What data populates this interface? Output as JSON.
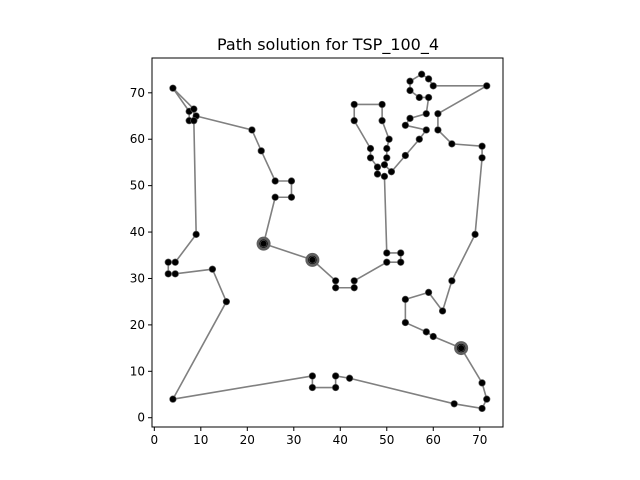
{
  "chart_data": {
    "type": "line",
    "title": "Path solution for TSP_100_4",
    "xlabel": "",
    "ylabel": "",
    "xlim": [
      -0.5,
      75
    ],
    "ylim": [
      -2,
      77.5
    ],
    "xticks": [
      0,
      10,
      20,
      30,
      40,
      50,
      60,
      70
    ],
    "yticks": [
      0,
      10,
      20,
      30,
      40,
      50,
      60,
      70
    ],
    "grid": false,
    "line_color": "#808080",
    "point_color": "#000000",
    "path": [
      [
        4.0,
        71.0
      ],
      [
        7.5,
        66.0
      ],
      [
        7.5,
        64.0
      ],
      [
        9.0,
        65.0
      ],
      [
        21.0,
        62.0
      ],
      [
        23.0,
        57.5
      ],
      [
        26.0,
        51.0
      ],
      [
        29.5,
        51.0
      ],
      [
        29.5,
        47.5
      ],
      [
        26.0,
        47.5
      ],
      [
        23.5,
        37.5
      ],
      [
        34.0,
        34.0
      ],
      [
        39.0,
        29.5
      ],
      [
        39.0,
        28.0
      ],
      [
        43.0,
        28.0
      ],
      [
        43.0,
        29.5
      ],
      [
        50.0,
        33.5
      ],
      [
        53.0,
        33.5
      ],
      [
        53.0,
        35.5
      ],
      [
        50.0,
        35.5
      ],
      [
        49.5,
        52.0
      ],
      [
        48.0,
        52.5
      ],
      [
        48.0,
        54.0
      ],
      [
        46.5,
        56.0
      ],
      [
        46.5,
        58.0
      ],
      [
        43.0,
        64.0
      ],
      [
        43.0,
        67.5
      ],
      [
        49.0,
        67.5
      ],
      [
        49.0,
        64.0
      ],
      [
        50.5,
        60.0
      ],
      [
        50.0,
        58.0
      ],
      [
        50.0,
        56.0
      ],
      [
        49.5,
        54.5
      ],
      [
        51.0,
        53.0
      ],
      [
        54.0,
        56.5
      ],
      [
        57.0,
        60.0
      ],
      [
        58.5,
        62.0
      ],
      [
        54.0,
        63.0
      ],
      [
        55.0,
        64.5
      ],
      [
        58.5,
        65.5
      ],
      [
        59.0,
        69.0
      ],
      [
        57.0,
        69.0
      ],
      [
        55.0,
        70.5
      ],
      [
        55.0,
        72.5
      ],
      [
        57.5,
        74.0
      ],
      [
        59.0,
        73.0
      ],
      [
        60.0,
        71.5
      ],
      [
        71.5,
        71.5
      ],
      [
        61.0,
        65.5
      ],
      [
        61.0,
        62.0
      ],
      [
        64.0,
        59.0
      ],
      [
        70.5,
        58.5
      ],
      [
        70.5,
        56.0
      ],
      [
        69.0,
        39.5
      ],
      [
        64.0,
        29.5
      ],
      [
        62.0,
        23.0
      ],
      [
        59.0,
        27.0
      ],
      [
        54.0,
        25.5
      ],
      [
        54.0,
        20.5
      ],
      [
        58.5,
        18.5
      ],
      [
        60.0,
        17.5
      ],
      [
        66.0,
        15.0
      ],
      [
        70.5,
        7.5
      ],
      [
        71.5,
        4.0
      ],
      [
        70.5,
        2.0
      ],
      [
        64.5,
        3.0
      ],
      [
        42.0,
        8.5
      ],
      [
        39.0,
        9.0
      ],
      [
        39.0,
        6.5
      ],
      [
        34.0,
        6.5
      ],
      [
        34.0,
        9.0
      ],
      [
        4.0,
        4.0
      ],
      [
        15.5,
        25.0
      ],
      [
        12.5,
        32.0
      ],
      [
        4.5,
        31.0
      ],
      [
        3.0,
        31.0
      ],
      [
        3.0,
        33.5
      ],
      [
        4.5,
        33.5
      ],
      [
        9.0,
        39.5
      ],
      [
        8.5,
        64.0
      ],
      [
        8.5,
        66.5
      ],
      [
        4.0,
        71.0
      ]
    ],
    "highlighted_points": [
      [
        23.5,
        37.5
      ],
      [
        34.0,
        34.0
      ],
      [
        66.0,
        15.0
      ]
    ]
  }
}
